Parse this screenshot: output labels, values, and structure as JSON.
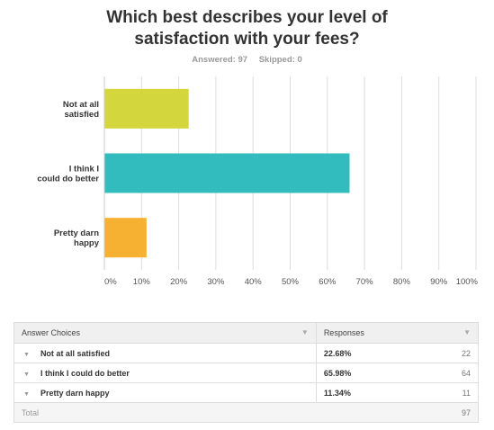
{
  "question": {
    "title_line1": "Which best describes your level of",
    "title_line2": "satisfaction with your fees?"
  },
  "stats": {
    "answered": "Answered: 97",
    "skipped": "Skipped: 0"
  },
  "chart_data": {
    "type": "bar",
    "orientation": "horizontal",
    "categories": [
      {
        "lines": [
          "Not at all",
          "satisfied"
        ],
        "value": 22.68,
        "color": "#d4d63d"
      },
      {
        "lines": [
          "I think I",
          "could do better"
        ],
        "value": 65.98,
        "color": "#33bcbd"
      },
      {
        "lines": [
          "Pretty darn",
          "happy"
        ],
        "value": 11.34,
        "color": "#f6b133"
      }
    ],
    "xlim": [
      0,
      100
    ],
    "ticks": [
      "0%",
      "10%",
      "20%",
      "30%",
      "40%",
      "50%",
      "60%",
      "70%",
      "80%",
      "90%",
      "100%"
    ],
    "grid": true
  },
  "table": {
    "header_choices": "Answer Choices",
    "header_responses": "Responses",
    "rows": [
      {
        "choice": "Not at all satisfied",
        "percent": "22.68%",
        "count": "22"
      },
      {
        "choice": "I think I could do better",
        "percent": "65.98%",
        "count": "64"
      },
      {
        "choice": "Pretty darn happy",
        "percent": "11.34%",
        "count": "11"
      }
    ],
    "total_label": "Total",
    "total_count": "97"
  },
  "icons": {
    "header_caret": "▼",
    "row_caret": "▼"
  }
}
